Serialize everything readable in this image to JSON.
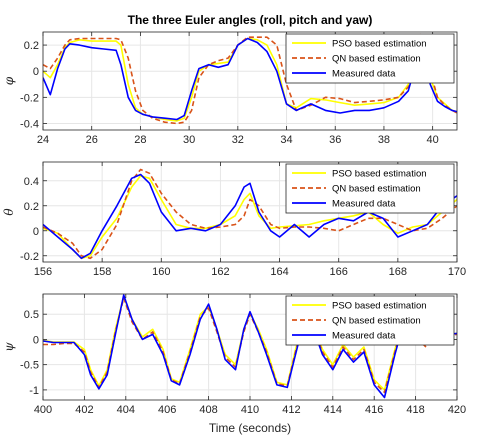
{
  "figure": {
    "title": "The three Euler angles (roll, pitch and yaw)",
    "xlabel": "Time (seconds)"
  },
  "colors": {
    "pso": "#ffff00",
    "qn": "#d95319",
    "measured": "#0000ff",
    "grid": "#e6e6e6",
    "axis": "#262626"
  },
  "chart_data": [
    {
      "type": "line",
      "ylabel": "φ",
      "xlim": [
        24,
        41
      ],
      "ylim": [
        -0.45,
        0.3
      ],
      "xticks": [
        24,
        26,
        28,
        30,
        32,
        34,
        36,
        38,
        40
      ],
      "yticks": [
        -0.4,
        -0.2,
        0,
        0.2
      ],
      "grid": true,
      "legend_position": "top-right",
      "series": [
        {
          "name": "PSO based estimation",
          "color": "#ffff00",
          "dash": "solid",
          "x": [
            24,
            24.3,
            24.6,
            24.9,
            25.1,
            25.5,
            26,
            26.5,
            27,
            27.2,
            27.5,
            27.8,
            28.1,
            28.5,
            29,
            29.5,
            29.8,
            30.1,
            30.4,
            30.8,
            31.2,
            31.6,
            32,
            32.4,
            32.8,
            33.2,
            33.6,
            34,
            34.4,
            35,
            35.6,
            36.2,
            36.8,
            37.4,
            38,
            38.6,
            39,
            39.3,
            39.5,
            39.7,
            39.9,
            40.2,
            40.5,
            40.8,
            41
          ],
          "y": [
            0.0,
            -0.05,
            0.05,
            0.18,
            0.22,
            0.24,
            0.23,
            0.23,
            0.23,
            0.2,
            -0.1,
            -0.28,
            -0.33,
            -0.35,
            -0.37,
            -0.38,
            -0.36,
            -0.2,
            0.0,
            0.05,
            0.06,
            0.07,
            0.2,
            0.25,
            0.24,
            0.2,
            0.05,
            -0.25,
            -0.28,
            -0.21,
            -0.22,
            -0.24,
            -0.26,
            -0.25,
            -0.24,
            -0.2,
            -0.1,
            0.1,
            0.27,
            0.25,
            -0.05,
            -0.2,
            -0.25,
            -0.3,
            -0.31
          ]
        },
        {
          "name": "QN based estimation",
          "color": "#d95319",
          "dash": "dashed",
          "x": [
            24,
            24.3,
            24.6,
            24.9,
            25.1,
            25.5,
            26,
            26.5,
            27,
            27.2,
            27.5,
            27.8,
            28.1,
            28.5,
            29,
            29.5,
            29.8,
            30.1,
            30.4,
            30.8,
            31.2,
            31.6,
            32,
            32.4,
            32.8,
            33.2,
            33.6,
            34,
            34.4,
            35,
            35.6,
            36.2,
            36.8,
            37.4,
            38,
            38.6,
            39,
            39.3,
            39.5,
            39.7,
            39.9,
            40.2,
            40.5,
            40.8,
            41
          ],
          "y": [
            0.05,
            0.02,
            0.1,
            0.2,
            0.24,
            0.25,
            0.25,
            0.25,
            0.25,
            0.24,
            0.1,
            -0.15,
            -0.3,
            -0.36,
            -0.39,
            -0.4,
            -0.39,
            -0.3,
            -0.05,
            0.05,
            0.08,
            0.1,
            0.2,
            0.26,
            0.26,
            0.26,
            0.2,
            -0.1,
            -0.3,
            -0.26,
            -0.2,
            -0.21,
            -0.24,
            -0.23,
            -0.22,
            -0.2,
            -0.12,
            0.05,
            0.28,
            0.26,
            0.0,
            -0.2,
            -0.26,
            -0.3,
            -0.32
          ]
        },
        {
          "name": "Measured data",
          "color": "#0000ff",
          "dash": "solid",
          "x": [
            24,
            24.3,
            24.6,
            24.9,
            25.1,
            25.5,
            26,
            26.5,
            27,
            27.2,
            27.5,
            27.8,
            28.1,
            28.5,
            29,
            29.5,
            29.8,
            30.1,
            30.4,
            30.8,
            31.2,
            31.6,
            32,
            32.4,
            32.8,
            33.2,
            33.6,
            34,
            34.4,
            35,
            35.6,
            36.2,
            36.8,
            37.4,
            38,
            38.6,
            39,
            39.3,
            39.5,
            39.7,
            39.9,
            40.2,
            40.5,
            40.8,
            41
          ],
          "y": [
            -0.05,
            -0.18,
            0.02,
            0.17,
            0.21,
            0.2,
            0.18,
            0.17,
            0.16,
            0.05,
            -0.2,
            -0.3,
            -0.33,
            -0.35,
            -0.36,
            -0.37,
            -0.34,
            -0.15,
            0.02,
            0.05,
            0.03,
            0.05,
            0.2,
            0.25,
            0.22,
            0.15,
            0.0,
            -0.25,
            -0.3,
            -0.25,
            -0.3,
            -0.32,
            -0.3,
            -0.3,
            -0.28,
            -0.23,
            -0.15,
            0.05,
            0.24,
            0.2,
            -0.1,
            -0.23,
            -0.27,
            -0.3,
            -0.31
          ]
        }
      ]
    },
    {
      "type": "line",
      "ylabel": "θ",
      "xlim": [
        156,
        170
      ],
      "ylim": [
        -0.25,
        0.55
      ],
      "xticks": [
        156,
        158,
        160,
        162,
        164,
        166,
        168,
        170
      ],
      "yticks": [
        -0.2,
        0,
        0.2,
        0.4
      ],
      "grid": true,
      "legend_position": "top-right",
      "series": [
        {
          "name": "PSO based estimation",
          "color": "#ffff00",
          "dash": "solid",
          "x": [
            156,
            156.5,
            157,
            157.3,
            157.6,
            158,
            158.5,
            159,
            159.3,
            159.6,
            160,
            160.5,
            161,
            161.5,
            162,
            162.5,
            162.8,
            163,
            163.3,
            163.7,
            164,
            164.5,
            165,
            165.5,
            166,
            166.5,
            167,
            167.5,
            168,
            168.5,
            169,
            169.5,
            170
          ],
          "y": [
            0.02,
            -0.02,
            -0.15,
            -0.22,
            -0.2,
            -0.05,
            0.1,
            0.35,
            0.44,
            0.42,
            0.25,
            0.05,
            0.02,
            0.02,
            0.05,
            0.12,
            0.25,
            0.3,
            0.12,
            0.02,
            0.03,
            0.04,
            0.05,
            0.08,
            0.1,
            0.12,
            0.15,
            0.05,
            -0.02,
            0.03,
            0.05,
            0.15,
            0.25
          ]
        },
        {
          "name": "QN based estimation",
          "color": "#d95319",
          "dash": "dashed",
          "x": [
            156,
            156.5,
            157,
            157.3,
            157.6,
            158,
            158.5,
            159,
            159.3,
            159.6,
            160,
            160.5,
            161,
            161.5,
            162,
            162.5,
            162.8,
            163,
            163.3,
            163.7,
            164,
            164.5,
            165,
            165.5,
            166,
            166.5,
            167,
            167.5,
            168,
            168.5,
            169,
            169.5,
            170
          ],
          "y": [
            0.03,
            -0.02,
            -0.1,
            -0.2,
            -0.22,
            -0.15,
            0.05,
            0.4,
            0.49,
            0.46,
            0.3,
            0.15,
            0.05,
            0.02,
            0.03,
            0.05,
            0.12,
            0.25,
            0.2,
            0.05,
            0.02,
            0.03,
            0.03,
            0.02,
            0.0,
            0.05,
            0.1,
            0.1,
            0.05,
            0.0,
            0.02,
            0.1,
            0.2
          ]
        },
        {
          "name": "Measured data",
          "color": "#0000ff",
          "dash": "solid",
          "x": [
            156,
            156.5,
            157,
            157.3,
            157.6,
            158,
            158.5,
            159,
            159.3,
            159.6,
            160,
            160.5,
            161,
            161.5,
            162,
            162.5,
            162.8,
            163,
            163.3,
            163.7,
            164,
            164.5,
            165,
            165.5,
            166,
            166.5,
            167,
            167.5,
            168,
            168.5,
            169,
            169.5,
            170
          ],
          "y": [
            0.05,
            -0.05,
            -0.15,
            -0.22,
            -0.18,
            0.0,
            0.2,
            0.42,
            0.45,
            0.38,
            0.15,
            0.0,
            0.02,
            0.0,
            0.05,
            0.2,
            0.35,
            0.38,
            0.15,
            0.0,
            -0.05,
            0.05,
            -0.05,
            0.05,
            0.1,
            0.08,
            0.15,
            0.1,
            -0.05,
            0.0,
            0.05,
            0.2,
            0.28
          ]
        }
      ]
    },
    {
      "type": "line",
      "ylabel": "ψ",
      "xlim": [
        400,
        420
      ],
      "ylim": [
        -1.2,
        0.9
      ],
      "xticks": [
        400,
        402,
        404,
        406,
        408,
        410,
        412,
        414,
        416,
        418,
        420
      ],
      "yticks": [
        -1,
        -0.5,
        0,
        0.5
      ],
      "grid": true,
      "legend_position": "top-right",
      "series": [
        {
          "name": "PSO based estimation",
          "color": "#ffff00",
          "dash": "solid",
          "x": [
            400,
            400.5,
            401,
            401.5,
            402,
            402.3,
            402.7,
            403.1,
            403.5,
            403.9,
            404.3,
            404.8,
            405.3,
            405.8,
            406.2,
            406.6,
            407.1,
            407.6,
            408,
            408.4,
            408.8,
            409.3,
            409.7,
            410,
            410.4,
            410.8,
            411.3,
            411.8,
            412.2,
            412.6,
            413,
            413.5,
            414,
            414.5,
            415,
            415.5,
            416,
            416.5,
            417,
            417.5,
            418,
            418.5,
            419,
            419.5,
            420
          ],
          "y": [
            -0.02,
            -0.05,
            -0.05,
            -0.05,
            -0.2,
            -0.6,
            -0.92,
            -0.6,
            0.2,
            0.85,
            0.4,
            0.05,
            0.2,
            -0.2,
            -0.78,
            -0.85,
            -0.2,
            0.5,
            0.65,
            0.2,
            -0.3,
            -0.5,
            0.2,
            0.52,
            0.2,
            -0.2,
            -0.85,
            -0.9,
            -0.2,
            0.4,
            0.35,
            -0.2,
            -0.5,
            -0.1,
            -0.35,
            -0.15,
            -0.8,
            -1.0,
            -0.2,
            0.5,
            0.1,
            -0.1,
            0.15,
            0.1,
            0.12
          ]
        },
        {
          "name": "QN based estimation",
          "color": "#d95319",
          "dash": "dashed",
          "x": [
            400,
            400.5,
            401,
            401.5,
            402,
            402.3,
            402.7,
            403.1,
            403.5,
            403.9,
            404.3,
            404.8,
            405.3,
            405.8,
            406.2,
            406.6,
            407.1,
            407.6,
            408,
            408.4,
            408.8,
            409.3,
            409.7,
            410,
            410.4,
            410.8,
            411.3,
            411.8,
            412.2,
            412.6,
            413,
            413.5,
            414,
            414.5,
            415,
            415.5,
            416,
            416.5,
            417,
            417.5,
            418,
            418.5,
            419,
            419.5,
            420
          ],
          "y": [
            -0.1,
            -0.1,
            -0.08,
            -0.08,
            -0.25,
            -0.65,
            -0.95,
            -0.65,
            0.15,
            0.82,
            0.35,
            0.0,
            0.15,
            -0.25,
            -0.8,
            -0.88,
            -0.25,
            0.45,
            0.62,
            0.15,
            -0.35,
            -0.55,
            0.15,
            0.5,
            0.15,
            -0.25,
            -0.88,
            -0.92,
            -0.25,
            0.35,
            0.3,
            -0.25,
            -0.55,
            -0.15,
            -0.4,
            -0.2,
            -0.85,
            -1.05,
            -0.25,
            0.45,
            0.05,
            -0.15,
            0.1,
            0.08,
            0.1
          ]
        },
        {
          "name": "Measured data",
          "color": "#0000ff",
          "dash": "solid",
          "x": [
            400,
            400.5,
            401,
            401.5,
            402,
            402.3,
            402.7,
            403.1,
            403.5,
            403.9,
            404.3,
            404.8,
            405.3,
            405.8,
            406.2,
            406.6,
            407.1,
            407.6,
            408,
            408.4,
            408.8,
            409.3,
            409.7,
            410,
            410.4,
            410.8,
            411.3,
            411.8,
            412.2,
            412.6,
            413,
            413.5,
            414,
            414.5,
            415,
            415.5,
            416,
            416.5,
            417,
            417.5,
            418,
            418.5,
            419,
            419.5,
            420
          ],
          "y": [
            -0.03,
            -0.06,
            -0.06,
            -0.06,
            -0.3,
            -0.7,
            -0.98,
            -0.7,
            0.1,
            0.88,
            0.4,
            0.0,
            0.1,
            -0.3,
            -0.82,
            -0.9,
            -0.3,
            0.4,
            0.7,
            0.2,
            -0.4,
            -0.6,
            0.2,
            0.55,
            0.15,
            -0.3,
            -0.9,
            -0.95,
            -0.3,
            0.35,
            0.28,
            -0.3,
            -0.6,
            -0.2,
            -0.45,
            -0.25,
            -0.9,
            -1.15,
            -0.3,
            0.45,
            0.05,
            -0.1,
            0.15,
            0.1,
            0.12
          ]
        }
      ]
    }
  ]
}
